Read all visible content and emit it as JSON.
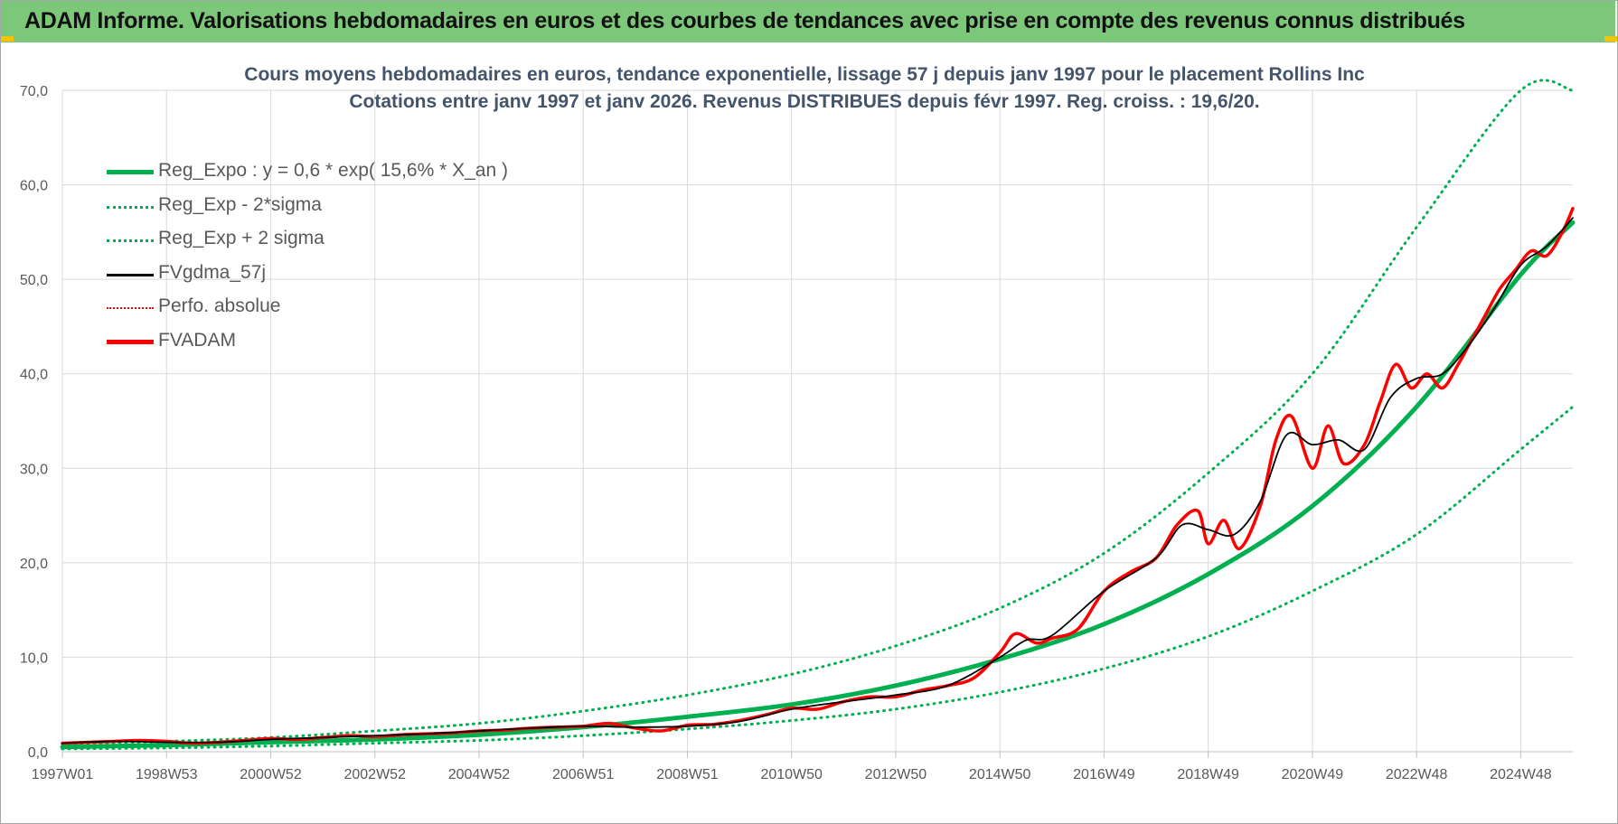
{
  "header": {
    "title": "ADAM Informe. Valorisations hebdomadaires en euros et des courbes de tendances avec prise en compte des revenus connus distribués"
  },
  "colors": {
    "header_bg": "#7dc77a",
    "trend_green": "#00b050",
    "price_red": "#ff0000",
    "smooth_black": "#000000",
    "title_text": "#44546a"
  },
  "legend": [
    {
      "label": "Reg_Expo : y = 0,6 * exp( 15,6% *  X_an )",
      "style": "solid-green-thick"
    },
    {
      "label": "Reg_Exp - 2*sigma",
      "style": "dotted-green"
    },
    {
      "label": "Reg_Exp + 2 sigma",
      "style": "dotted-green"
    },
    {
      "label": "FVgdma_57j",
      "style": "solid-black"
    },
    {
      "label": "Perfo. absolue",
      "style": "dotted-red"
    },
    {
      "label": "FVADAM",
      "style": "solid-red-thick"
    }
  ],
  "chart_data": {
    "type": "line",
    "title_lines": [
      "Cours moyens hebdomadaires en euros, tendance exponentielle, lissage 57 j depuis janv 1997 pour le placement Rollins Inc",
      "Cotations entre janv 1997 et janv 2026. Revenus DISTRIBUES depuis févr 1997. Reg. croiss. : 19,6/20."
    ],
    "xlabel": "",
    "ylabel": "",
    "ylim": [
      0,
      70
    ],
    "xlim_years": [
      1997.0,
      2026.0
    ],
    "y_ticks": [
      "0,0",
      "10,0",
      "20,0",
      "30,0",
      "40,0",
      "50,0",
      "60,0",
      "70,0"
    ],
    "x_ticks": [
      "1997W01",
      "1998W53",
      "2000W52",
      "2002W52",
      "2004W52",
      "2006W51",
      "2008W51",
      "2010W50",
      "2012W50",
      "2014W50",
      "2016W49",
      "2018W49",
      "2020W49",
      "2022W48",
      "2024W48"
    ],
    "x_tick_years": [
      1997.0,
      1999.0,
      2001.0,
      2003.0,
      2005.0,
      2007.0,
      2009.0,
      2011.0,
      2013.0,
      2015.0,
      2017.0,
      2019.0,
      2021.0,
      2023.0,
      2025.0
    ],
    "grid": true,
    "legend_position": "top-left",
    "trend": {
      "name": "Reg_Expo : y = 0,6 * exp( 15,6% *  X_an )",
      "x_years": [
        1997,
        1999,
        2001,
        2003,
        2005,
        2007,
        2009,
        2011,
        2013,
        2015,
        2017,
        2019,
        2021,
        2023,
        2025,
        2026
      ],
      "values": [
        0.5,
        0.7,
        1.0,
        1.3,
        1.8,
        2.6,
        3.7,
        5.0,
        7.0,
        9.8,
        13.5,
        18.8,
        26.0,
        36.5,
        50.5,
        56.0
      ]
    },
    "trend_minus_2sigma": {
      "name": "Reg_Exp - 2*sigma",
      "x_years": [
        1997,
        1999,
        2001,
        2003,
        2005,
        2007,
        2009,
        2011,
        2013,
        2015,
        2017,
        2019,
        2021,
        2023,
        2025,
        2026
      ],
      "values": [
        0.3,
        0.4,
        0.6,
        0.9,
        1.2,
        1.7,
        2.4,
        3.3,
        4.5,
        6.3,
        8.8,
        12.2,
        17.0,
        23.0,
        32.0,
        36.5
      ]
    },
    "trend_plus_2sigma": {
      "name": "Reg_Exp + 2 sigma",
      "x_years": [
        1997,
        1999,
        2001,
        2003,
        2005,
        2007,
        2009,
        2011,
        2013,
        2015,
        2017,
        2019,
        2021,
        2023,
        2025,
        2026
      ],
      "values": [
        0.8,
        1.1,
        1.5,
        2.2,
        3.0,
        4.3,
        6.0,
        8.2,
        11.2,
        15.2,
        21.0,
        29.5,
        40.0,
        55.5,
        70.0,
        70.0
      ]
    },
    "fvadam": {
      "name": "FVADAM",
      "x_years": [
        1997.0,
        1997.5,
        1998.0,
        1998.5,
        1999.0,
        1999.5,
        2000.0,
        2000.5,
        2001.0,
        2001.5,
        2002.0,
        2002.5,
        2003.0,
        2003.5,
        2004.0,
        2004.5,
        2005.0,
        2005.5,
        2006.0,
        2006.5,
        2007.0,
        2007.5,
        2008.0,
        2008.5,
        2009.0,
        2009.5,
        2010.0,
        2010.5,
        2011.0,
        2011.5,
        2012.0,
        2012.5,
        2013.0,
        2013.5,
        2014.0,
        2014.5,
        2015.0,
        2015.3,
        2015.7,
        2016.0,
        2016.5,
        2017.0,
        2017.5,
        2018.0,
        2018.4,
        2018.8,
        2019.0,
        2019.3,
        2019.6,
        2020.0,
        2020.3,
        2020.6,
        2021.0,
        2021.3,
        2021.6,
        2022.0,
        2022.3,
        2022.6,
        2022.9,
        2023.2,
        2023.5,
        2023.8,
        2024.0,
        2024.3,
        2024.6,
        2024.9,
        2025.2,
        2025.5,
        2025.8,
        2026.0
      ],
      "values": [
        0.9,
        1.0,
        1.1,
        1.2,
        1.1,
        0.9,
        1.0,
        1.2,
        1.4,
        1.3,
        1.5,
        1.7,
        1.6,
        1.8,
        1.9,
        2.0,
        2.2,
        2.3,
        2.5,
        2.6,
        2.7,
        3.0,
        2.5,
        2.2,
        2.8,
        2.9,
        3.3,
        3.9,
        4.6,
        4.5,
        5.3,
        5.8,
        5.8,
        6.5,
        7.0,
        7.8,
        10.5,
        12.5,
        11.5,
        12.0,
        13.0,
        17.0,
        19.0,
        20.5,
        24.0,
        25.5,
        22.0,
        24.5,
        21.5,
        26.0,
        33.0,
        35.5,
        30.0,
        34.5,
        30.5,
        32.5,
        37.0,
        41.0,
        38.5,
        40.0,
        38.5,
        41.0,
        43.0,
        46.0,
        49.0,
        51.0,
        53.0,
        52.5,
        55.0,
        57.5
      ]
    },
    "fvgdma_57j": {
      "name": "FVgdma_57j",
      "x_years": [
        1997.0,
        1998.0,
        1999.0,
        2000.0,
        2001.0,
        2002.0,
        2003.0,
        2004.0,
        2005.0,
        2006.0,
        2007.0,
        2008.0,
        2009.0,
        2010.0,
        2011.0,
        2012.0,
        2013.0,
        2014.0,
        2015.0,
        2015.5,
        2016.0,
        2017.0,
        2018.0,
        2018.5,
        2019.0,
        2019.5,
        2020.0,
        2020.5,
        2021.0,
        2021.5,
        2022.0,
        2022.5,
        2023.0,
        2023.5,
        2024.0,
        2024.5,
        2025.0,
        2025.5,
        2026.0
      ],
      "values": [
        0.9,
        1.1,
        1.0,
        1.0,
        1.3,
        1.5,
        1.7,
        1.9,
        2.2,
        2.5,
        2.7,
        2.6,
        2.7,
        3.2,
        4.5,
        5.3,
        6.0,
        7.0,
        10.0,
        11.8,
        12.3,
        17.0,
        20.5,
        24.0,
        23.5,
        23.0,
        26.5,
        33.5,
        32.5,
        33.0,
        32.0,
        37.5,
        39.5,
        40.0,
        43.0,
        47.0,
        51.5,
        53.5,
        56.5
      ]
    }
  }
}
